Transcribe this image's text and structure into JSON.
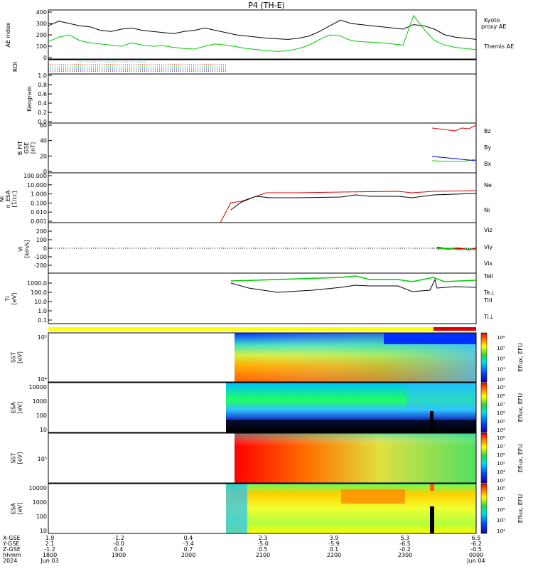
{
  "title": "P4 (TH-E)",
  "colors": {
    "red": "#dd0000",
    "green": "#00cc00",
    "blue": "#0000cc",
    "black": "#000000",
    "yellow": "#ffff00"
  },
  "chart_data": {
    "type": "multi-panel time series",
    "time_ticks": [
      "1800",
      "1900",
      "2000",
      "2100",
      "2200",
      "2300",
      "0000"
    ],
    "date_labels": {
      "start": "Jun 03",
      "end": "Jun 04",
      "year": "2024"
    },
    "footer_rows": [
      {
        "label": "X-GSE",
        "values": [
          "1.9",
          "-1.2",
          "0.4",
          "2.3",
          "3.9",
          "5.3",
          "6.5"
        ]
      },
      {
        "label": "Y-GSE",
        "values": [
          "2.1",
          "-0.0",
          "-3.4",
          "-5.0",
          "-5.9",
          "-6.5",
          "-6.2"
        ]
      },
      {
        "label": "Z-GSE",
        "values": [
          "-1.2",
          "0.4",
          "0.7",
          "0.5",
          "0.1",
          "-0.2",
          "-0.5"
        ]
      },
      {
        "label": "hhmm",
        "values": [
          "1800",
          "1900",
          "2000",
          "2100",
          "2200",
          "2300",
          "0000"
        ]
      }
    ],
    "panels": [
      {
        "id": "ae",
        "ylabel": "AE index",
        "yticks": [
          "0",
          "100",
          "200",
          "300",
          "400"
        ],
        "ylim": [
          0,
          400
        ],
        "series": [
          {
            "name": "Themis AE",
            "color": "#000000",
            "values": [
              280,
              320,
              300,
              280,
              270,
              240,
              230,
              250,
              260,
              240,
              230,
              220,
              210,
              230,
              240,
              260,
              240,
              220,
              200,
              190,
              180,
              170,
              165,
              160,
              170,
              190,
              230,
              280,
              330,
              300,
              290,
              280,
              270,
              260,
              250,
              290,
              280,
              250,
              200,
              180,
              170,
              160
            ]
          },
          {
            "name": "Kyoto proxy AE",
            "color": "#00cc00",
            "values": [
              140,
              180,
              200,
              150,
              130,
              120,
              110,
              100,
              130,
              110,
              100,
              105,
              90,
              80,
              75,
              100,
              120,
              110,
              95,
              80,
              70,
              60,
              55,
              60,
              80,
              110,
              160,
              200,
              190,
              150,
              140,
              135,
              130,
              120,
              110,
              370,
              250,
              150,
              110,
              90,
              80,
              70
            ]
          }
        ]
      },
      {
        "id": "roi",
        "ylabel": "ROI"
      },
      {
        "id": "keogram",
        "ylabel": "Keogram",
        "yticks": [
          "0.0",
          "0.2",
          "0.4",
          "0.6",
          "0.8",
          "1.0"
        ]
      },
      {
        "id": "bfit",
        "ylabel": "B FIT\nGSE\n[nT]",
        "yticks": [
          "0",
          "20",
          "40",
          "60"
        ],
        "ylim": [
          0,
          60
        ],
        "series": [
          {
            "name": "Bz",
            "color": "#dd0000"
          },
          {
            "name": "By",
            "color": "#00cc00"
          },
          {
            "name": "Bx",
            "color": "#0000cc"
          }
        ]
      },
      {
        "id": "ni",
        "ylabel": "Ni\nn_ESA\n[1/cc]",
        "yticks": [
          "0.001",
          "0.010",
          "0.100",
          "1.000",
          "10.000",
          "100.000"
        ],
        "ylim": [
          0.001,
          100
        ],
        "series": [
          {
            "name": "Ne",
            "color": "#dd0000"
          },
          {
            "name": "Ni",
            "color": "#000000"
          }
        ]
      },
      {
        "id": "vi",
        "ylabel": "Vi\n[km/s]",
        "yticks": [
          "-200",
          "-100",
          "0",
          "100",
          "200"
        ],
        "ylim": [
          -300,
          300
        ],
        "series": [
          {
            "name": "Viz",
            "color": "#dd0000"
          },
          {
            "name": "Viy",
            "color": "#00cc00"
          },
          {
            "name": "Vix",
            "color": "#0000cc"
          }
        ]
      },
      {
        "id": "ti",
        "ylabel": "Ti\n[eV]",
        "yticks": [
          "0.1",
          "1.0",
          "10.0",
          "100.0",
          "1000.0"
        ],
        "ylim": [
          0.05,
          10000
        ],
        "series": [
          {
            "name": "TeII",
            "color": "#000000"
          },
          {
            "name": "Te⊥",
            "color": "#dd0000"
          },
          {
            "name": "TiII",
            "color": "#00cc00"
          },
          {
            "name": "Ti⊥",
            "color": "#0000cc"
          }
        ]
      },
      {
        "id": "sst_e",
        "ylabel": "SST\n[eV]",
        "yticks": [
          "10⁴",
          "10⁵"
        ],
        "cbar_label": "Eflux, EFU",
        "cbar_ticks": [
          "10⁶",
          "10⁵",
          "10⁴",
          "10³",
          "10²"
        ]
      },
      {
        "id": "esa_e",
        "ylabel": "ESA\n[eV]",
        "yticks": [
          "10",
          "100",
          "1000",
          "10000"
        ],
        "cbar_label": "Eflux, EFU",
        "cbar_ticks": [
          "10⁹",
          "10⁸",
          "10⁷",
          "10⁶",
          "10⁵",
          "10⁴"
        ]
      },
      {
        "id": "sst_i",
        "ylabel": "SST\n[eV]",
        "yticks": [
          "10⁵"
        ],
        "cbar_label": "Eflux, EFU",
        "cbar_ticks": [
          "10⁸",
          "10⁷",
          "10⁶",
          "10⁵",
          "10⁴",
          "10³"
        ]
      },
      {
        "id": "esa_i",
        "ylabel": "ESA\n[eV]",
        "yticks": [
          "10",
          "100",
          "1000",
          "10000"
        ],
        "cbar_label": "Eflux, EFU",
        "cbar_ticks": [
          "10⁸",
          "10⁷",
          "10⁶",
          "10⁵",
          "10⁴"
        ]
      }
    ]
  }
}
